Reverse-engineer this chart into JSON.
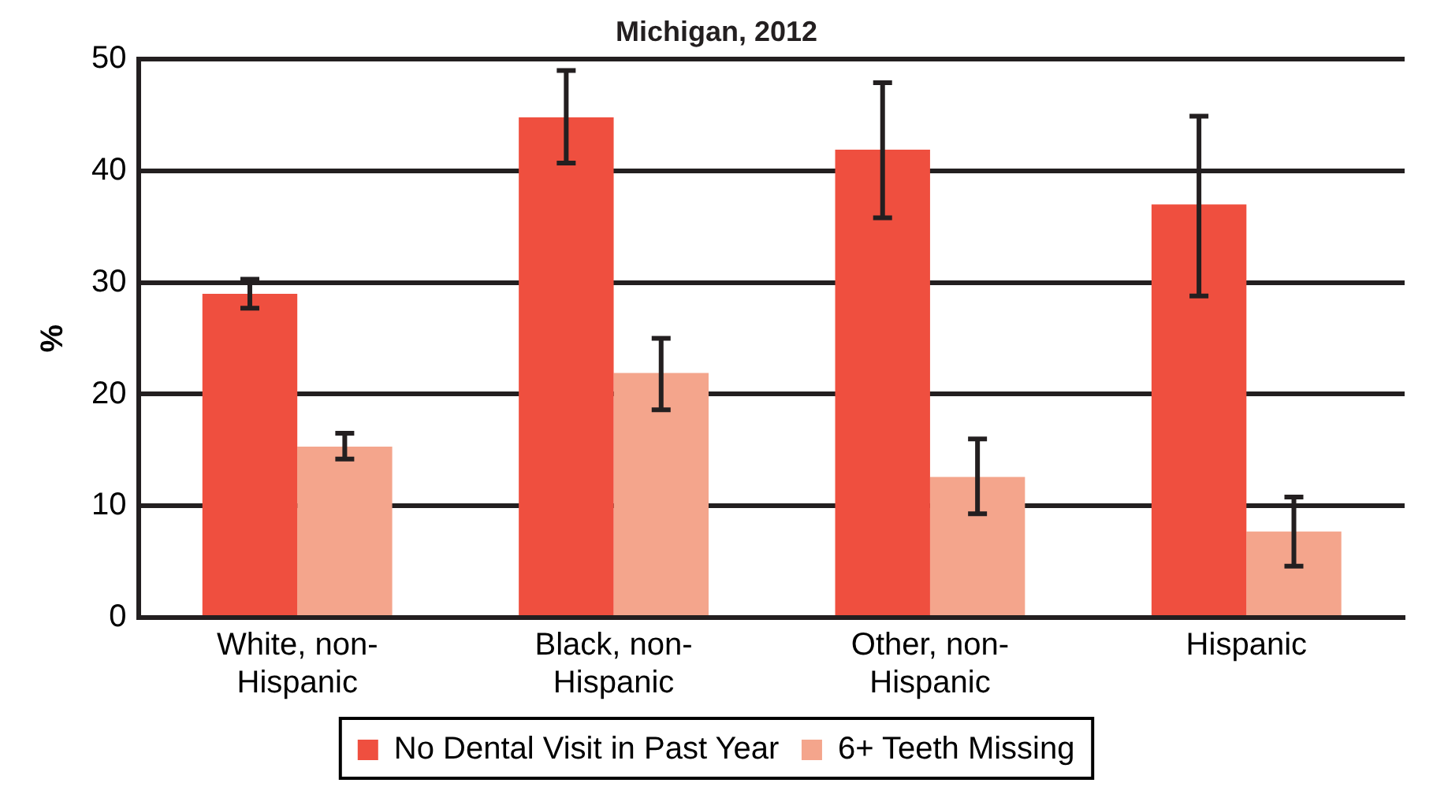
{
  "chart_data": {
    "type": "bar",
    "title": "Michigan, 2012",
    "ylabel": "%",
    "categories": [
      "White, non-Hispanic",
      "Black, non-Hispanic",
      "Other, non-Hispanic",
      "Hispanic"
    ],
    "series": [
      {
        "name": "No Dental Visit in Past Year",
        "color": "#ef4f3f",
        "values": [
          29.0,
          44.8,
          41.9,
          37.0
        ],
        "errors": [
          [
            27.7,
            30.3
          ],
          [
            40.7,
            49.0
          ],
          [
            35.8,
            47.9
          ],
          [
            28.8,
            44.9
          ]
        ]
      },
      {
        "name": "6+ Teeth Missing",
        "color": "#f4a58c",
        "values": [
          15.3,
          21.9,
          12.6,
          7.7
        ],
        "errors": [
          [
            14.2,
            16.5
          ],
          [
            18.6,
            25.0
          ],
          [
            9.3,
            16.0
          ],
          [
            4.6,
            10.8
          ]
        ]
      }
    ],
    "ylim": [
      0,
      50
    ],
    "yticks": [
      0,
      10,
      20,
      30,
      40,
      50
    ],
    "grid": "y",
    "legend": "bottom"
  }
}
